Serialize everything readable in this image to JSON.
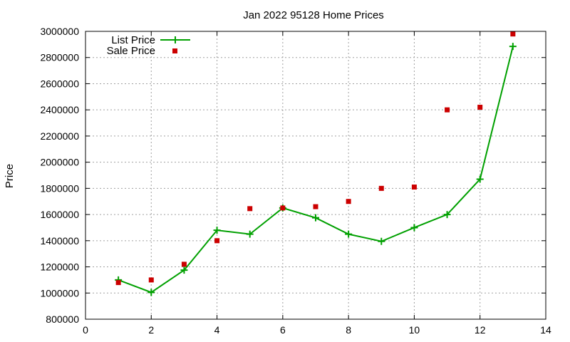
{
  "chart_data": {
    "type": "line",
    "title": "Jan 2022 95128 Home Prices",
    "xlabel": "",
    "ylabel": "Price",
    "xlim": [
      0,
      14
    ],
    "ylim": [
      800000,
      3000000
    ],
    "x_ticks": [
      "0",
      "2",
      "4",
      "6",
      "8",
      "10",
      "12",
      "14"
    ],
    "y_ticks": [
      "800000",
      "1000000",
      "1200000",
      "1400000",
      "1600000",
      "1800000",
      "2000000",
      "2200000",
      "2400000",
      "2600000",
      "2800000",
      "3000000"
    ],
    "grid": true,
    "legend_position": "top-left",
    "series": [
      {
        "name": "List Price",
        "style": "line-plus",
        "color": "#00a000",
        "x": [
          1,
          2,
          3,
          4,
          5,
          6,
          7,
          8,
          9,
          10,
          11,
          12,
          13
        ],
        "y": [
          1100000,
          1005000,
          1175000,
          1480000,
          1450000,
          1650000,
          1575000,
          1450000,
          1395000,
          1500000,
          1600000,
          1870000,
          2885000
        ]
      },
      {
        "name": "Sale Price",
        "style": "square-points",
        "color": "#cc0000",
        "x": [
          1,
          2,
          3,
          4,
          5,
          6,
          7,
          8,
          9,
          10,
          11,
          12,
          13
        ],
        "y": [
          1080000,
          1100000,
          1220000,
          1400000,
          1645000,
          1650000,
          1660000,
          1700000,
          1800000,
          1810000,
          2400000,
          2420000,
          2980000
        ]
      }
    ]
  }
}
